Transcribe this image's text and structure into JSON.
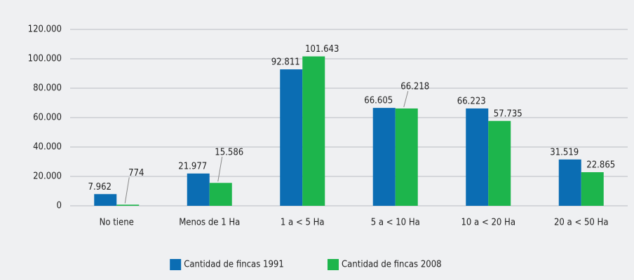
{
  "chart_data": {
    "type": "bar",
    "categories": [
      "No tiene",
      "Menos de 1 Ha",
      "1 a < 5 Ha",
      "5 a < 10 Ha",
      "10 a < 20 Ha",
      "20 a < 50 Ha"
    ],
    "series": [
      {
        "name": "Cantidad de fincas 1991",
        "color": "#0b6db3",
        "values": [
          7962,
          21977,
          92811,
          66605,
          66223,
          31519
        ],
        "value_labels": [
          "7.962",
          "21.977",
          "92.811",
          "66.605",
          "66.223",
          "31.519"
        ]
      },
      {
        "name": "Cantidad de fincas 2008",
        "color": "#1db54c",
        "values": [
          774,
          15586,
          101643,
          66218,
          57735,
          22865
        ],
        "value_labels": [
          "774",
          "15.586",
          "101.643",
          "66.218",
          "57.735",
          "22.865"
        ]
      }
    ],
    "ylim": [
      0,
      120000
    ],
    "yticks": [
      0,
      {
        "value": 20000,
        "label": "20.000"
      },
      {
        "value": 40000,
        "label": "40.000"
      },
      {
        "value": 60000,
        "label": "60.000"
      },
      {
        "value": 80000,
        "label": "80.000"
      },
      {
        "value": 100000,
        "label": "100.000"
      },
      {
        "value": 120000,
        "label": "120.000"
      }
    ],
    "grid": true,
    "legend": "bottom"
  }
}
